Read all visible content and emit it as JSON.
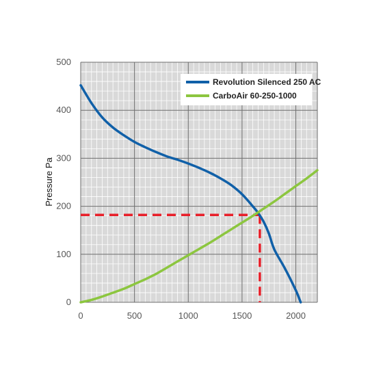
{
  "chart_data": {
    "type": "line",
    "title": "",
    "xlabel": "",
    "ylabel": "Pressure Pa",
    "xlim": [
      0,
      2200
    ],
    "ylim": [
      0,
      500
    ],
    "x_ticks": [
      0,
      500,
      1000,
      1500,
      2000
    ],
    "y_ticks": [
      0,
      100,
      200,
      300,
      400,
      500
    ],
    "x_tick_labels": [
      "0",
      "500",
      "1000",
      "1500",
      "2000"
    ],
    "y_tick_labels": [
      "0",
      "100",
      "200",
      "300",
      "400",
      "500"
    ],
    "grid": true,
    "minor_grid": true,
    "legend_position": "top-right",
    "series": [
      {
        "name": "Revolution Silenced 250 AC",
        "color": "#1060a8",
        "x": [
          0,
          100,
          200,
          300,
          400,
          500,
          600,
          700,
          800,
          900,
          1000,
          1100,
          1200,
          1300,
          1400,
          1500,
          1600,
          1650,
          1700,
          1750,
          1800,
          1900,
          2000,
          2045
        ],
        "y": [
          452,
          415,
          385,
          364,
          348,
          334,
          323,
          313,
          304,
          297,
          289,
          280,
          270,
          258,
          244,
          225,
          200,
          186,
          168,
          143,
          110,
          70,
          25,
          0
        ]
      },
      {
        "name": "CarboAir 60-250-1000",
        "color": "#8cc63f",
        "x": [
          0,
          100,
          200,
          300,
          400,
          500,
          600,
          700,
          800,
          900,
          1000,
          1100,
          1200,
          1300,
          1400,
          1500,
          1600,
          1700,
          1800,
          1900,
          2000,
          2100,
          2200
        ],
        "y": [
          0,
          5,
          12,
          20,
          28,
          38,
          48,
          59,
          72,
          85,
          98,
          111,
          124,
          138,
          152,
          166,
          180,
          195,
          210,
          226,
          242,
          258,
          275
        ]
      }
    ],
    "annotations": [
      {
        "type": "operating-point-guide",
        "x": 1665,
        "y": 182,
        "color": "#e8202a",
        "style": "dashed"
      }
    ]
  }
}
